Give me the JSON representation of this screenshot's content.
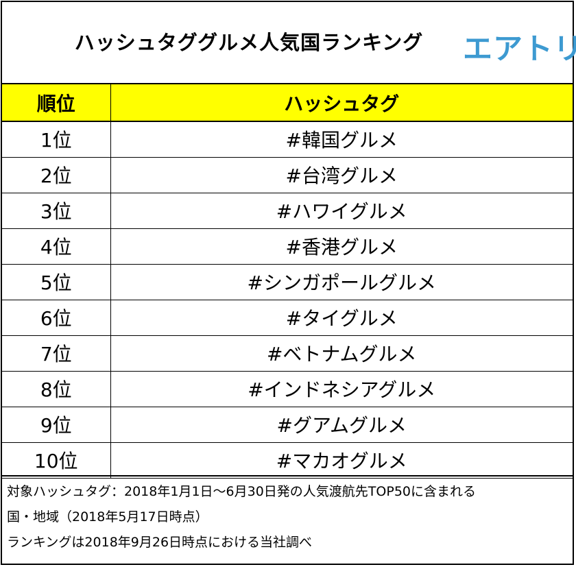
{
  "header": {
    "title": "ハッシュタググルメ人気国ランキング",
    "logo_text": "エアトリ",
    "logo_color": "#3d9ad1"
  },
  "table": {
    "header_color": "#ffff00",
    "columns": [
      "順位",
      "ハッシュタグ"
    ],
    "rows": [
      {
        "rank": "1位",
        "tag": "#韓国グルメ"
      },
      {
        "rank": "2位",
        "tag": "#台湾グルメ"
      },
      {
        "rank": "3位",
        "tag": "#ハワイグルメ"
      },
      {
        "rank": "4位",
        "tag": "#香港グルメ"
      },
      {
        "rank": "5位",
        "tag": "#シンガポールグルメ"
      },
      {
        "rank": "6位",
        "tag": "#タイグルメ"
      },
      {
        "rank": "7位",
        "tag": "#ベトナムグルメ"
      },
      {
        "rank": "8位",
        "tag": "#インドネシアグルメ"
      },
      {
        "rank": "9位",
        "tag": "#グアムグルメ"
      },
      {
        "rank": "10位",
        "tag": "#マカオグルメ"
      }
    ]
  },
  "notes": [
    "対象ハッシュタグ：2018年1月1日～6月30日発の人気渡航先TOP50に含まれる",
    "国・地域（2018年5月17日時点）",
    "ランキングは2018年9月26日時点における当社調べ"
  ]
}
